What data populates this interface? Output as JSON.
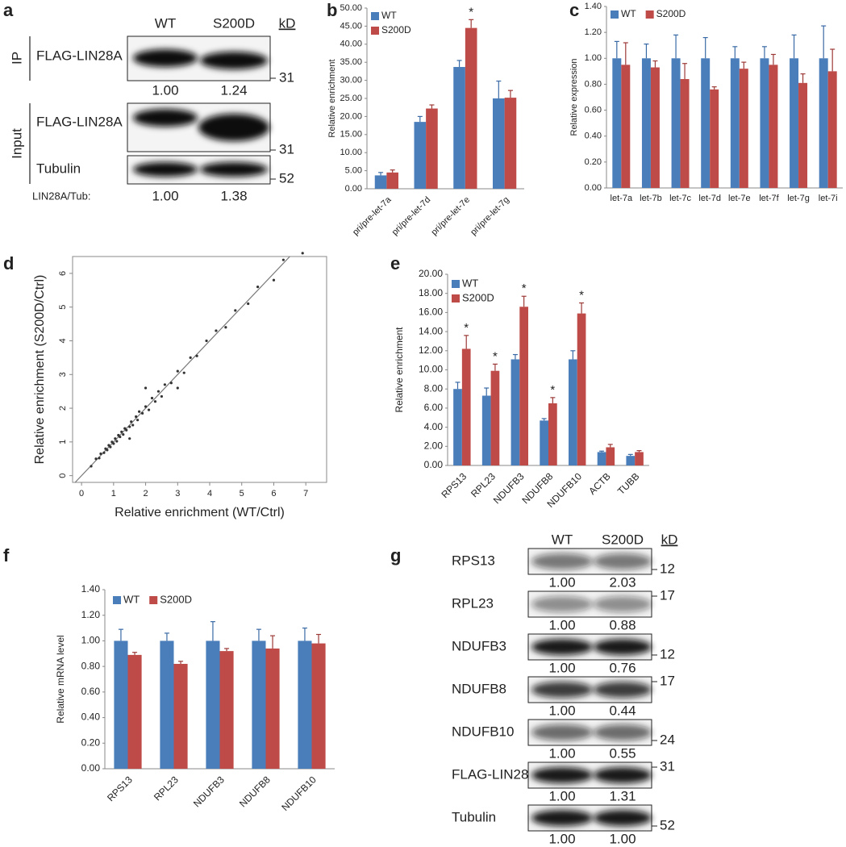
{
  "blots": [
    {
      "panel": "a",
      "columns": [
        "WT",
        "S200D"
      ],
      "unit": "kD",
      "groups": [
        {
          "label": "IP",
          "rows": [
            {
              "name": "FLAG-LIN28A",
              "kd": "31"
            }
          ],
          "quant": [
            "1.00",
            "1.24"
          ]
        },
        {
          "label": "Input",
          "rows": [
            {
              "name": "FLAG-LIN28A",
              "kd": "31"
            },
            {
              "name": "Tubulin",
              "kd": "52"
            }
          ],
          "ratio_label": "LIN28A/Tub:",
          "ratio": [
            "1.00",
            "1.38"
          ]
        }
      ]
    },
    {
      "panel": "g",
      "columns": [
        "WT",
        "S200D"
      ],
      "unit": "kD",
      "rows": [
        {
          "name": "RPS13",
          "kd": "12",
          "quant": [
            "1.00",
            "2.03"
          ]
        },
        {
          "name": "RPL23",
          "kd": "17",
          "quant": [
            "1.00",
            "0.88"
          ]
        },
        {
          "name": "NDUFB3",
          "kd": "12",
          "quant": [
            "1.00",
            "0.76"
          ]
        },
        {
          "name": "NDUFB8",
          "kd": "17",
          "quant": [
            "1.00",
            "0.44"
          ]
        },
        {
          "name": "NDUFB10",
          "kd": "24",
          "quant": [
            "1.00",
            "0.55"
          ]
        },
        {
          "name": "FLAG-LIN28A",
          "kd": "31",
          "quant": [
            "1.00",
            "1.31"
          ]
        },
        {
          "name": "Tubulin",
          "kd": "52",
          "quant": [
            "1.00",
            "1.00"
          ]
        }
      ]
    }
  ],
  "chart_data": [
    {
      "type": "bar",
      "panel": "b",
      "ylabel": "Relative enrichment",
      "categories": [
        "pri/pre-let-7a",
        "pri/pre-let-7d",
        "pri/pre-let-7e",
        "pri/pre-let-7g"
      ],
      "series": [
        {
          "name": "WT",
          "color": "#4a7ebb",
          "values": [
            3.7,
            18.5,
            33.7,
            25.0
          ],
          "errors": [
            0.8,
            1.5,
            1.8,
            4.8
          ]
        },
        {
          "name": "S200D",
          "color": "#be4b48",
          "values": [
            4.5,
            22.2,
            44.5,
            25.2
          ],
          "errors": [
            0.7,
            1.0,
            2.3,
            2.0
          ],
          "significance": [
            null,
            null,
            "*",
            null
          ]
        }
      ],
      "ylim": [
        0,
        50
      ],
      "yticks": [
        {
          "value": 0,
          "label": "0.00"
        },
        {
          "value": 5,
          "label": "5.00"
        },
        {
          "value": 10,
          "label": "10.00"
        },
        {
          "value": 15,
          "label": "15.00"
        },
        {
          "value": 20,
          "label": "20.00"
        },
        {
          "value": 25,
          "label": "25.00"
        },
        {
          "value": 30,
          "label": "30.00"
        },
        {
          "value": 35,
          "label": "35.00"
        },
        {
          "value": 40,
          "label": "40.00"
        },
        {
          "value": 45,
          "label": "45.00"
        },
        {
          "value": 50,
          "label": "50.00"
        }
      ],
      "legend": "upper left"
    },
    {
      "type": "bar",
      "panel": "c",
      "ylabel": "Relative expression",
      "categories": [
        "let-7a",
        "let-7b",
        "let-7c",
        "let-7d",
        "let-7e",
        "let-7f",
        "let-7g",
        "let-7i"
      ],
      "series": [
        {
          "name": "WT",
          "color": "#4a7ebb",
          "values": [
            1.0,
            1.0,
            1.0,
            1.0,
            1.0,
            1.0,
            1.0,
            1.0
          ],
          "errors": [
            0.13,
            0.11,
            0.18,
            0.16,
            0.09,
            0.09,
            0.18,
            0.25
          ]
        },
        {
          "name": "S200D",
          "color": "#be4b48",
          "values": [
            0.95,
            0.93,
            0.84,
            0.76,
            0.92,
            0.95,
            0.81,
            0.9
          ],
          "errors": [
            0.17,
            0.05,
            0.12,
            0.02,
            0.05,
            0.08,
            0.07,
            0.17
          ]
        }
      ],
      "ylim": [
        0,
        1.4
      ],
      "yticks": [
        {
          "value": 0,
          "label": "0.00"
        },
        {
          "value": 0.2,
          "label": "0.20"
        },
        {
          "value": 0.4,
          "label": "0.40"
        },
        {
          "value": 0.6,
          "label": "0.60"
        },
        {
          "value": 0.8,
          "label": "0.80"
        },
        {
          "value": 1.0,
          "label": "1.00"
        },
        {
          "value": 1.2,
          "label": "1.20"
        },
        {
          "value": 1.4,
          "label": "1.40"
        }
      ],
      "legend": "upper left"
    },
    {
      "type": "scatter",
      "panel": "d",
      "xlabel": "Relative enrichment (WT/Ctrl)",
      "ylabel": "Relative enrichment (S200D/Ctrl)",
      "color": "#333333",
      "x": [
        0.3,
        0.45,
        0.55,
        0.6,
        0.7,
        0.75,
        0.8,
        0.85,
        0.9,
        0.95,
        1.0,
        1.05,
        1.1,
        1.15,
        1.2,
        1.25,
        1.3,
        1.35,
        1.4,
        1.5,
        1.55,
        1.6,
        1.7,
        1.75,
        1.8,
        1.9,
        2.0,
        2.1,
        2.2,
        2.3,
        2.4,
        2.5,
        2.6,
        2.8,
        3.0,
        3.2,
        3.4,
        3.6,
        3.9,
        4.2,
        4.5,
        4.8,
        5.2,
        5.5,
        6.0,
        6.3,
        6.9,
        2.0,
        1.5,
        3.0
      ],
      "values": [
        0.28,
        0.5,
        0.52,
        0.65,
        0.68,
        0.8,
        0.76,
        0.9,
        0.85,
        1.0,
        0.95,
        1.1,
        1.02,
        1.2,
        1.15,
        1.3,
        1.22,
        1.4,
        1.35,
        1.45,
        1.6,
        1.5,
        1.75,
        1.65,
        1.9,
        1.85,
        2.05,
        1.95,
        2.3,
        2.2,
        2.5,
        2.35,
        2.7,
        2.75,
        3.1,
        3.05,
        3.5,
        3.55,
        4.0,
        4.3,
        4.4,
        4.9,
        5.1,
        5.6,
        5.8,
        6.4,
        6.6,
        2.6,
        1.1,
        2.6
      ],
      "xlim": [
        -0.28,
        7.65
      ],
      "ylim": [
        -0.2,
        6.5
      ],
      "xticks": [
        0,
        1,
        2,
        3,
        4,
        5,
        6,
        7
      ],
      "yticks": [
        0,
        1,
        2,
        3,
        4,
        5,
        6
      ]
    },
    {
      "type": "bar",
      "panel": "e",
      "ylabel": "Relative enrichment",
      "categories": [
        "RPS13",
        "RPL23",
        "NDUFB3",
        "NDUFB8",
        "NDUFB10",
        "ACTB",
        "TUBB"
      ],
      "series": [
        {
          "name": "WT",
          "color": "#4a7ebb",
          "values": [
            8.0,
            7.3,
            11.1,
            4.7,
            11.1,
            1.4,
            1.0
          ],
          "errors": [
            0.7,
            0.8,
            0.5,
            0.2,
            0.9,
            0.1,
            0.15
          ]
        },
        {
          "name": "S200D",
          "color": "#be4b48",
          "values": [
            12.2,
            9.9,
            16.6,
            6.5,
            15.9,
            1.9,
            1.4
          ],
          "errors": [
            1.4,
            0.7,
            1.1,
            0.6,
            1.1,
            0.3,
            0.15
          ],
          "significance": [
            "*",
            "*",
            "*",
            "*",
            "*",
            null,
            null
          ]
        }
      ],
      "ylim": [
        0,
        20
      ],
      "yticks": [
        {
          "value": 0,
          "label": "0.00"
        },
        {
          "value": 2,
          "label": "2.00"
        },
        {
          "value": 4,
          "label": "4.00"
        },
        {
          "value": 6,
          "label": "6.00"
        },
        {
          "value": 8,
          "label": "8.00"
        },
        {
          "value": 10,
          "label": "10.00"
        },
        {
          "value": 12,
          "label": "12.00"
        },
        {
          "value": 14,
          "label": "14.00"
        },
        {
          "value": 16,
          "label": "16.00"
        },
        {
          "value": 18,
          "label": "18.00"
        },
        {
          "value": 20,
          "label": "20.00"
        }
      ],
      "legend": "upper left"
    },
    {
      "type": "bar",
      "panel": "f",
      "ylabel": "Relative mRNA level",
      "categories": [
        "RPS13",
        "RPL23",
        "NDUFB3",
        "NDUFB8",
        "NDUFB10"
      ],
      "series": [
        {
          "name": "WT",
          "color": "#4a7ebb",
          "values": [
            1.0,
            1.0,
            1.0,
            1.0,
            1.0
          ],
          "errors": [
            0.09,
            0.06,
            0.15,
            0.09,
            0.1
          ]
        },
        {
          "name": "S200D",
          "color": "#be4b48",
          "values": [
            0.89,
            0.82,
            0.92,
            0.94,
            0.98
          ],
          "errors": [
            0.02,
            0.02,
            0.02,
            0.1,
            0.07
          ]
        }
      ],
      "ylim": [
        0,
        1.4
      ],
      "yticks": [
        {
          "value": 0,
          "label": "0.00"
        },
        {
          "value": 0.2,
          "label": "0.20"
        },
        {
          "value": 0.4,
          "label": "0.40"
        },
        {
          "value": 0.6,
          "label": "0.60"
        },
        {
          "value": 0.8,
          "label": "0.80"
        },
        {
          "value": 1.0,
          "label": "1.00"
        },
        {
          "value": 1.2,
          "label": "1.20"
        },
        {
          "value": 1.4,
          "label": "1.40"
        }
      ],
      "legend": "upper left"
    }
  ]
}
